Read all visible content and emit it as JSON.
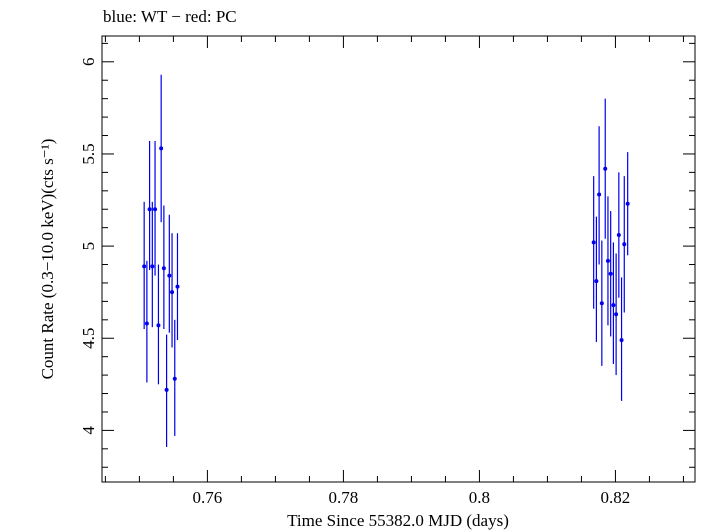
{
  "chart_data": {
    "type": "scatter",
    "title": "blue: WT − red: PC",
    "xlabel": "Time Since 55382.0 MJD (days)",
    "ylabel": "Count Rate (0.3−10.0 keV)(cts s⁻¹)",
    "xlim": [
      0.7445,
      0.8317
    ],
    "ylim": [
      3.72,
      6.14
    ],
    "xticks": [
      0.76,
      0.78,
      0.8,
      0.82
    ],
    "xtick_labels": [
      "0.76",
      "0.78",
      "0.8",
      "0.82"
    ],
    "yticks": [
      4,
      4.5,
      5,
      5.5,
      6
    ],
    "ytick_labels": [
      "4",
      "4.5",
      "5",
      "5.5",
      "6"
    ],
    "grid": false,
    "legend": "none",
    "series": [
      {
        "color": "#0000ee",
        "error_bars": "y",
        "points": [
          {
            "x": 0.7507,
            "y": 4.89,
            "lo": 4.55,
            "hi": 5.24
          },
          {
            "x": 0.7511,
            "y": 4.58,
            "lo": 4.26,
            "hi": 4.92
          },
          {
            "x": 0.7515,
            "y": 5.2,
            "lo": 4.87,
            "hi": 5.57
          },
          {
            "x": 0.7519,
            "y": 4.89,
            "lo": 4.56,
            "hi": 5.24
          },
          {
            "x": 0.7523,
            "y": 5.2,
            "lo": 4.84,
            "hi": 5.57
          },
          {
            "x": 0.7528,
            "y": 4.57,
            "lo": 4.25,
            "hi": 4.9
          },
          {
            "x": 0.7532,
            "y": 5.53,
            "lo": 5.13,
            "hi": 5.93
          },
          {
            "x": 0.7536,
            "y": 4.88,
            "lo": 4.55,
            "hi": 5.22
          },
          {
            "x": 0.754,
            "y": 4.22,
            "lo": 3.91,
            "hi": 4.52
          },
          {
            "x": 0.7544,
            "y": 4.84,
            "lo": 4.53,
            "hi": 5.17
          },
          {
            "x": 0.7548,
            "y": 4.75,
            "lo": 4.45,
            "hi": 5.07
          },
          {
            "x": 0.7552,
            "y": 4.28,
            "lo": 3.97,
            "hi": 4.6
          },
          {
            "x": 0.7556,
            "y": 4.78,
            "lo": 4.49,
            "hi": 5.07
          },
          {
            "x": 0.8168,
            "y": 5.02,
            "lo": 4.66,
            "hi": 5.38
          },
          {
            "x": 0.8172,
            "y": 4.81,
            "lo": 4.48,
            "hi": 5.16
          },
          {
            "x": 0.8176,
            "y": 5.28,
            "lo": 4.9,
            "hi": 5.65
          },
          {
            "x": 0.818,
            "y": 4.69,
            "lo": 4.35,
            "hi": 5.03
          },
          {
            "x": 0.8185,
            "y": 5.42,
            "lo": 5.04,
            "hi": 5.8
          },
          {
            "x": 0.8189,
            "y": 4.92,
            "lo": 4.57,
            "hi": 5.27
          },
          {
            "x": 0.8193,
            "y": 4.85,
            "lo": 4.51,
            "hi": 5.19
          },
          {
            "x": 0.8197,
            "y": 4.68,
            "lo": 4.36,
            "hi": 5.02
          },
          {
            "x": 0.8201,
            "y": 4.63,
            "lo": 4.3,
            "hi": 4.96
          },
          {
            "x": 0.8205,
            "y": 5.06,
            "lo": 4.72,
            "hi": 5.4
          },
          {
            "x": 0.8209,
            "y": 4.49,
            "lo": 4.16,
            "hi": 4.83
          },
          {
            "x": 0.8213,
            "y": 5.01,
            "lo": 4.64,
            "hi": 5.38
          },
          {
            "x": 0.8218,
            "y": 5.23,
            "lo": 4.95,
            "hi": 5.51
          }
        ]
      }
    ]
  }
}
